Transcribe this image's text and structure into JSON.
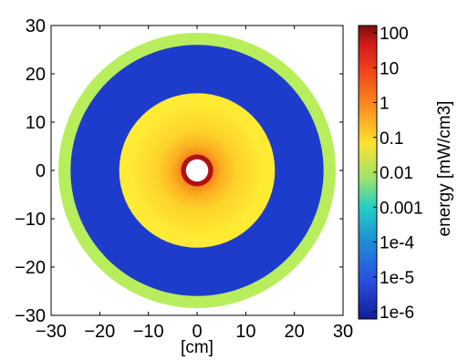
{
  "chart_data": {
    "type": "heatmap",
    "title": "",
    "xlabel": "[cm]",
    "ylabel": "",
    "xlim": [
      -30,
      30
    ],
    "ylim": [
      -30,
      30
    ],
    "x_ticks": [
      "−30",
      "−20",
      "−10",
      "0",
      "10",
      "20",
      "30"
    ],
    "y_ticks": [
      "30",
      "20",
      "10",
      "0",
      "−10",
      "−20",
      "−30"
    ],
    "colorbar": {
      "label": "energy [mW/cm3]",
      "scale": "log",
      "range": [
        1e-06,
        100
      ],
      "ticks": [
        "100",
        "10",
        "1",
        "0.1",
        "0.01",
        "0.001",
        "1e-4",
        "1e-5",
        "1e-6"
      ]
    },
    "regions": [
      {
        "r_inner_cm": 0,
        "r_outer_cm": 2.3,
        "energy": "none",
        "color": "#ffffff"
      },
      {
        "r_inner_cm": 2.3,
        "r_outer_cm": 3.3,
        "energy": "~50",
        "color": "#b01010"
      },
      {
        "r_inner_cm": 3.3,
        "r_outer_cm": 16,
        "energy": "0.1 - 10 (decreasing outward)",
        "color": "#ffe030"
      },
      {
        "r_inner_cm": 16,
        "r_outer_cm": 26,
        "energy": "~1e-5",
        "color": "#1e3ccc"
      },
      {
        "r_inner_cm": 26,
        "r_outer_cm": 28.5,
        "energy": "~0.01",
        "color": "#b8ee5c"
      }
    ]
  }
}
